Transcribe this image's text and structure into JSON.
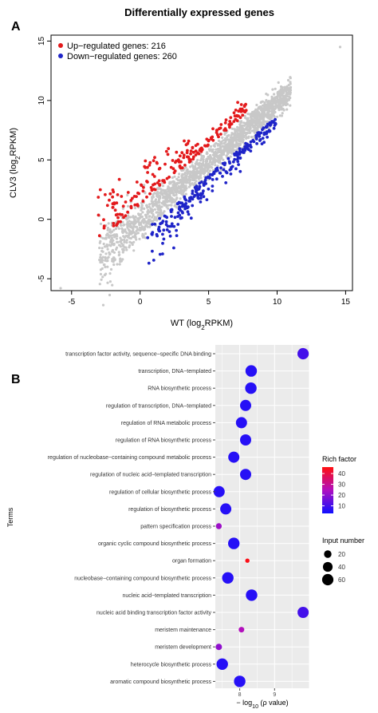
{
  "chart_data": [
    {
      "type": "scatter",
      "panel_label": "A",
      "title": "Differentially expressed genes",
      "xlabel": "WT (log",
      "xlabel_sub": "2",
      "xlabel_end": "RPKM)",
      "ylabel": "CLV3 (log",
      "ylabel_sub": "2",
      "ylabel_end": "RPKM)",
      "xlim": [
        -6.5,
        15.5
      ],
      "ylim": [
        -6,
        15.5
      ],
      "xticks": [
        "-5",
        "0",
        "5",
        "10",
        "15"
      ],
      "xtick_values": [
        -5,
        0,
        5,
        10,
        15
      ],
      "yticks": [
        "-5",
        "0",
        "5",
        "10",
        "15"
      ],
      "ytick_values": [
        -5,
        0,
        5,
        10,
        15
      ],
      "legend_position": "top-left",
      "series": [
        {
          "name": "Up−regulated genes: 216",
          "color": "#e31a1c",
          "count": 216
        },
        {
          "name": "Down−regulated genes: 260",
          "color": "#1f24c8",
          "count": 260
        },
        {
          "color": "#c8c8c8"
        }
      ],
      "grey_outliers": [
        [
          14.6,
          14.5
        ],
        [
          -5.8,
          -5.8
        ]
      ]
    },
    {
      "type": "scatter",
      "panel_label": "B",
      "xlabel": "− log",
      "xlabel_sub": "10",
      "xlabel_end": " (ρ value)",
      "ylabel": "Terms",
      "xlim": [
        7.3,
        10.0
      ],
      "xticks": [
        "8",
        "9"
      ],
      "xtick_values": [
        8,
        9
      ],
      "terms": [
        {
          "term": "transcription factor activity, sequence−specific DNA binding",
          "x": 9.82,
          "rich": 10,
          "input": 60
        },
        {
          "term": "transcription, DNA−templated",
          "x": 8.33,
          "rich": 6,
          "input": 62
        },
        {
          "term": "RNA biosynthetic process",
          "x": 8.32,
          "rich": 6,
          "input": 62
        },
        {
          "term": "regulation of transcription, DNA−templated",
          "x": 8.17,
          "rich": 6,
          "input": 58
        },
        {
          "term": "regulation of RNA metabolic process",
          "x": 8.05,
          "rich": 6,
          "input": 58
        },
        {
          "term": "regulation of RNA biosynthetic process",
          "x": 8.17,
          "rich": 6,
          "input": 58
        },
        {
          "term": "regulation of nucleobase−containing compound metabolic process",
          "x": 7.83,
          "rich": 6,
          "input": 58
        },
        {
          "term": "regulation of nucleic acid−templated transcription",
          "x": 8.17,
          "rich": 6,
          "input": 58
        },
        {
          "term": "regulation of cellular biosynthetic process",
          "x": 7.41,
          "rich": 6,
          "input": 58
        },
        {
          "term": "regulation of biosynthetic process",
          "x": 7.6,
          "rich": 6,
          "input": 58
        },
        {
          "term": "pattern specification process",
          "x": 7.4,
          "rich": 22,
          "input": 10
        },
        {
          "term": "organic cyclic compound biosynthetic process",
          "x": 7.83,
          "rich": 6,
          "input": 62
        },
        {
          "term": "organ formation",
          "x": 8.22,
          "rich": 45,
          "input": 3
        },
        {
          "term": "nucleobase−containing compound biosynthetic process",
          "x": 7.66,
          "rich": 6,
          "input": 62
        },
        {
          "term": "nucleic acid−templated transcription",
          "x": 8.34,
          "rich": 6,
          "input": 62
        },
        {
          "term": "nucleic acid binding transcription factor activity",
          "x": 9.82,
          "rich": 10,
          "input": 58
        },
        {
          "term": "meristem maintenance",
          "x": 8.05,
          "rich": 25,
          "input": 8
        },
        {
          "term": "meristem development",
          "x": 7.4,
          "rich": 20,
          "input": 12
        },
        {
          "term": "heterocycle biosynthetic process",
          "x": 7.5,
          "rich": 6,
          "input": 62
        },
        {
          "term": "aromatic compound biosynthetic process",
          "x": 8.0,
          "rich": 6,
          "input": 62
        }
      ],
      "legend_color": {
        "title": "Rich factor",
        "ticks": [
          10,
          20,
          30,
          40
        ],
        "min": 3,
        "max": 46,
        "low": "#1010ff",
        "high": "#ff1010"
      },
      "legend_size": {
        "title": "Input number",
        "values": [
          20,
          40,
          60
        ]
      }
    }
  ]
}
